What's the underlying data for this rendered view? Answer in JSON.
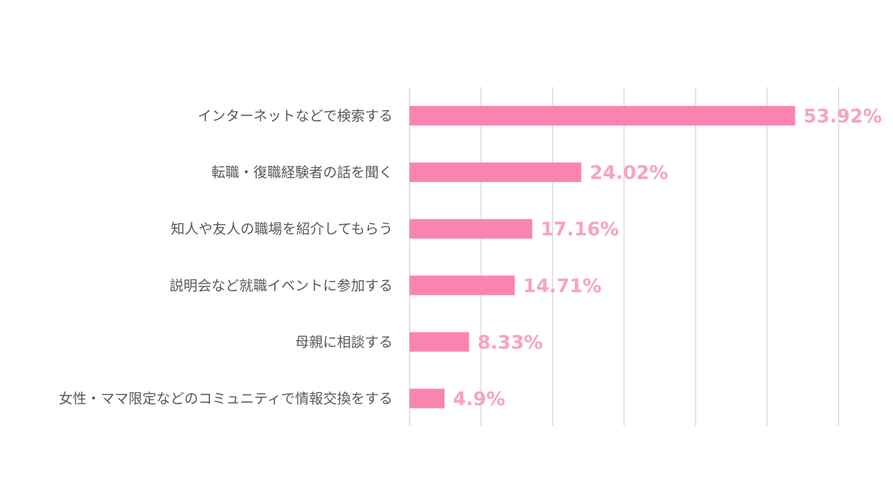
{
  "colors": {
    "bar": "#fa84b0",
    "value_label": "#f7a3c1",
    "category_label": "#595959",
    "grid": "#d9d9d9"
  },
  "chart_data": {
    "type": "bar",
    "orientation": "horizontal",
    "categories": [
      "インターネットなどで検索する",
      "転職・復職経験者の話を聞く",
      "知人や友人の職場を紹介してもらう",
      "説明会など就職イベントに参加する",
      "母親に相談する",
      "女性・ママ限定などのコミュニティで情報交換をする"
    ],
    "values": [
      53.92,
      24.02,
      17.16,
      14.71,
      8.33,
      4.9
    ],
    "value_labels": [
      "53.92%",
      "24.02%",
      "17.16%",
      "14.71%",
      "8.33%",
      "4.9%"
    ],
    "xlim": [
      0,
      60
    ],
    "grid": true,
    "legend": "none",
    "title": "",
    "xlabel": "",
    "ylabel": ""
  }
}
